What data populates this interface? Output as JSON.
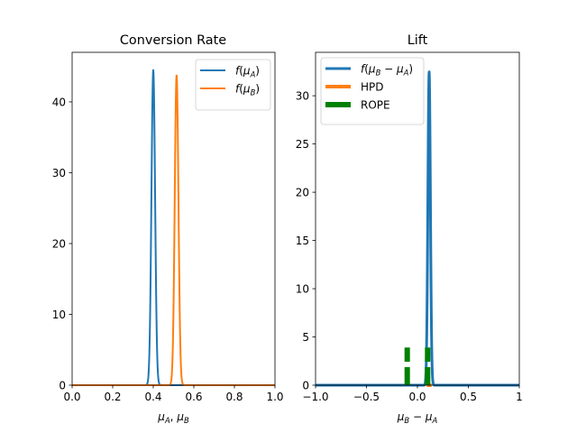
{
  "chart_data": [
    {
      "type": "line",
      "title": "Conversion Rate",
      "xlabel_parts": [
        "μ",
        "A",
        ", ",
        "μ",
        "B"
      ],
      "xlim": [
        0,
        1
      ],
      "ylim": [
        0,
        47
      ],
      "xticks": [
        "0.0",
        "0.2",
        "0.4",
        "0.6",
        "0.8",
        "1.0"
      ],
      "xtick_values": [
        0,
        0.2,
        0.4,
        0.6,
        0.8,
        1.0
      ],
      "yticks": [
        "0",
        "10",
        "20",
        "30",
        "40"
      ],
      "ytick_values": [
        0,
        10,
        20,
        30,
        40
      ],
      "grid": false,
      "legend_position": "top-right",
      "series": [
        {
          "name_parts": [
            "f(",
            "μ",
            "A",
            ")"
          ],
          "color": "#1f77b4",
          "distribution": "normal",
          "mean": 0.4,
          "sd": 0.009,
          "peak": 44.5
        },
        {
          "name_parts": [
            "f(",
            "μ",
            "B",
            ")"
          ],
          "color": "#ff7f0e",
          "distribution": "normal",
          "mean": 0.515,
          "sd": 0.0091,
          "peak": 43.8
        }
      ]
    },
    {
      "type": "line",
      "title": "Lift",
      "xlabel_parts": [
        "μ",
        "B",
        " − ",
        "μ",
        "A"
      ],
      "xlim": [
        -1,
        1
      ],
      "ylim": [
        0,
        34.5
      ],
      "xticks": [
        "−1.0",
        "−0.5",
        "0.0",
        "0.5",
        "1"
      ],
      "xtick_values": [
        -1,
        -0.5,
        0,
        0.5,
        1
      ],
      "yticks": [
        "0",
        "5",
        "10",
        "15",
        "20",
        "25",
        "30"
      ],
      "ytick_values": [
        0,
        5,
        10,
        15,
        20,
        25,
        30
      ],
      "grid": false,
      "legend_position": "top-left",
      "series": [
        {
          "name_parts": [
            "f(",
            "μ",
            "B",
            " − ",
            "μ",
            "A",
            ")"
          ],
          "color": "#1f77b4",
          "distribution": "normal",
          "mean": 0.115,
          "sd": 0.0123,
          "peak": 32.5
        },
        {
          "name": "HPD",
          "color": "#ff7f0e",
          "interval": [
            0.092,
            0.139
          ]
        },
        {
          "name": "ROPE",
          "color": "#008000",
          "bounds": [
            -0.1,
            0.1
          ],
          "top": 3.9
        }
      ]
    }
  ]
}
